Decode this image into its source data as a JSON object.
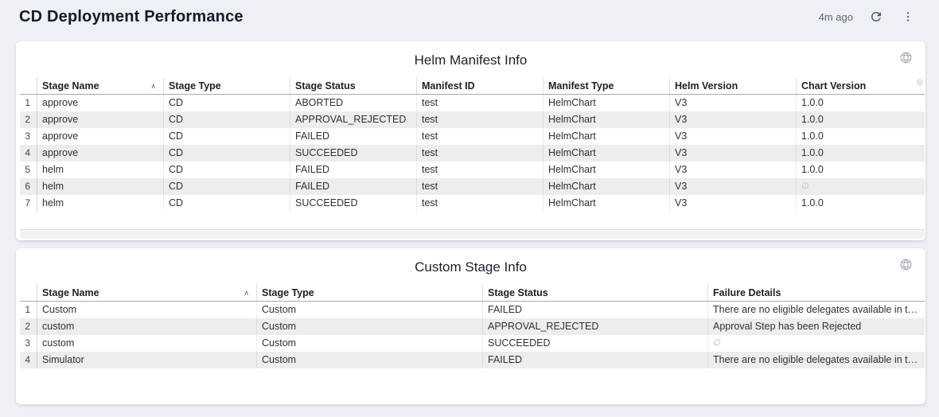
{
  "page": {
    "title": "CD Deployment Performance",
    "last_refreshed": "4m ago"
  },
  "icons": {
    "refresh": "circular-arrow",
    "menu": "vertical-kebab-dots",
    "globe": "globe-grid",
    "sort_asc": "∧",
    "null_symbol": "∅"
  },
  "colors": {
    "page_bg": "#eef0f5",
    "card_bg": "#ffffff",
    "stripe": "#ededee",
    "header_border": "#a7aaaf",
    "cell_text": "#2d3035",
    "muted": "#5d6570",
    "icon": "#525a66",
    "globe": "#a9aeb9",
    "title": "#131a29",
    "null_text": "#b9bdc4"
  },
  "tables": [
    {
      "title": "Helm Manifest Info",
      "sort": {
        "column": "Stage Name",
        "direction": "asc"
      },
      "columns": [
        "Stage Name",
        "Stage Type",
        "Stage Status",
        "Manifest ID",
        "Manifest Type",
        "Helm Version",
        "Chart Version"
      ],
      "rows": [
        [
          "approve",
          "CD",
          "ABORTED",
          "test",
          "HelmChart",
          "V3",
          "1.0.0"
        ],
        [
          "approve",
          "CD",
          "APPROVAL_REJECTED",
          "test",
          "HelmChart",
          "V3",
          "1.0.0"
        ],
        [
          "approve",
          "CD",
          "FAILED",
          "test",
          "HelmChart",
          "V3",
          "1.0.0"
        ],
        [
          "approve",
          "CD",
          "SUCCEEDED",
          "test",
          "HelmChart",
          "V3",
          "1.0.0"
        ],
        [
          "helm",
          "CD",
          "FAILED",
          "test",
          "HelmChart",
          "V3",
          "1.0.0"
        ],
        [
          "helm",
          "CD",
          "FAILED",
          "test",
          "HelmChart",
          "V3",
          "∅"
        ],
        [
          "helm",
          "CD",
          "SUCCEEDED",
          "test",
          "HelmChart",
          "V3",
          "1.0.0"
        ]
      ],
      "has_horizontal_scrollbar": true
    },
    {
      "title": "Custom Stage Info",
      "sort": {
        "column": "Stage Name",
        "direction": "asc"
      },
      "columns": [
        "Stage Name",
        "Stage Type",
        "Stage Status",
        "Failure Details"
      ],
      "rows": [
        [
          "Custom",
          "Custom",
          "FAILED",
          "There are no eligible delegates available in the …"
        ],
        [
          "custom",
          "Custom",
          "APPROVAL_REJECTED",
          "Approval Step has been Rejected"
        ],
        [
          "custom",
          "Custom",
          "SUCCEEDED",
          "∅"
        ],
        [
          "Simulator",
          "Custom",
          "FAILED",
          "There are no eligible delegates available in the …"
        ]
      ],
      "has_horizontal_scrollbar": false
    }
  ]
}
